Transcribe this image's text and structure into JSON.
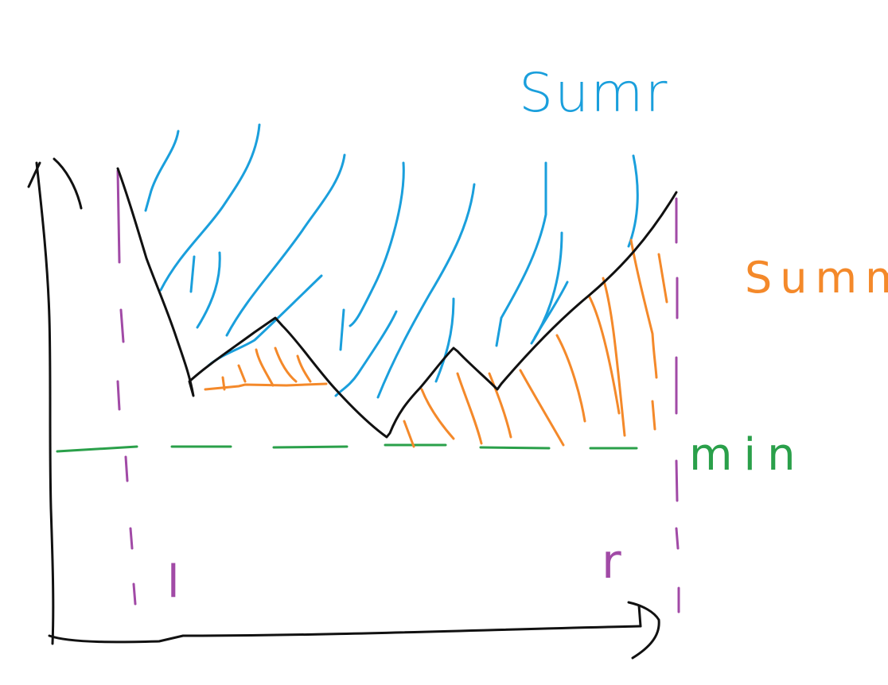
{
  "labels": {
    "sum_r": "Sumr",
    "sum_m": "Summ",
    "min": "min",
    "l": "l",
    "r": "r"
  },
  "colors": {
    "axes": "#111111",
    "curve": "#111111",
    "sum_r_hatch": "#1a9fdc",
    "sum_m_hatch": "#f4892a",
    "min_line": "#2aa04a",
    "bounds": "#a14aa6"
  }
}
